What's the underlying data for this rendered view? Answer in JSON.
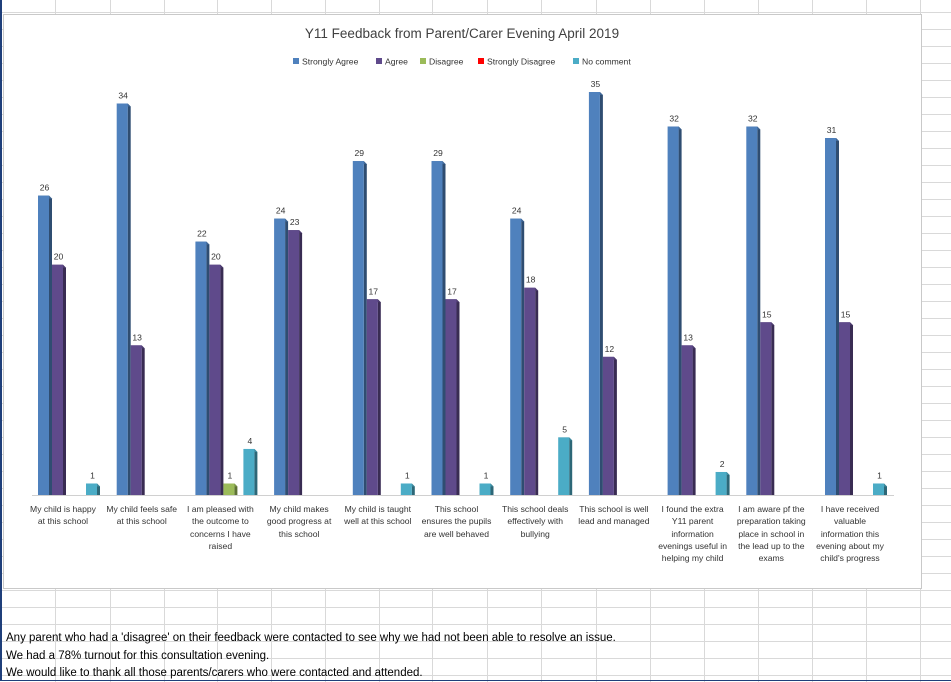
{
  "chart_data": {
    "type": "bar",
    "title": "Y11 Feedback from Parent/Carer Evening  April 2019",
    "categories": [
      "My child is happy at this school",
      "My child feels safe at this school",
      "I am pleased with the outcome to concerns I have raised",
      "My child makes good progress at this school",
      "My child is taught well at this school",
      "This school ensures the pupils are well behaved",
      "This school deals effectively with bullying",
      "This school is well lead and managed",
      "I found the extra Y11 parent information evenings useful in helping my child",
      "I am aware pf the preparation taking place in school in the lead up to the exams",
      "I have received valuable information this evening about my child's progress"
    ],
    "series": [
      {
        "name": "Strongly Agree",
        "color": "#4f81bd",
        "values": [
          26,
          34,
          22,
          24,
          29,
          29,
          24,
          35,
          32,
          32,
          31
        ]
      },
      {
        "name": "Agree",
        "color": "#5f4a8b",
        "values": [
          20,
          13,
          20,
          23,
          17,
          17,
          18,
          12,
          13,
          15,
          15
        ]
      },
      {
        "name": "Disagree",
        "color": "#9bbb59",
        "values": [
          null,
          null,
          1,
          null,
          null,
          null,
          null,
          null,
          null,
          null,
          null
        ]
      },
      {
        "name": "Strongly Disagree",
        "color": "#ff0000",
        "values": [
          null,
          null,
          null,
          null,
          null,
          null,
          null,
          null,
          null,
          null,
          null
        ]
      },
      {
        "name": "No comment",
        "color": "#4bacc6",
        "values": [
          1,
          null,
          4,
          null,
          1,
          1,
          5,
          null,
          2,
          null,
          1
        ]
      }
    ],
    "ylim": [
      0,
      35
    ],
    "legend_position": "top",
    "grid": false
  },
  "notes": [
    "Any parent who had a 'disagree' on their feedback were contacted to see why we had not been able to resolve an issue.",
    "We had a 78% turnout for this consultation evening.",
    "We would like to thank all those parents/carers who were contacted and attended."
  ]
}
